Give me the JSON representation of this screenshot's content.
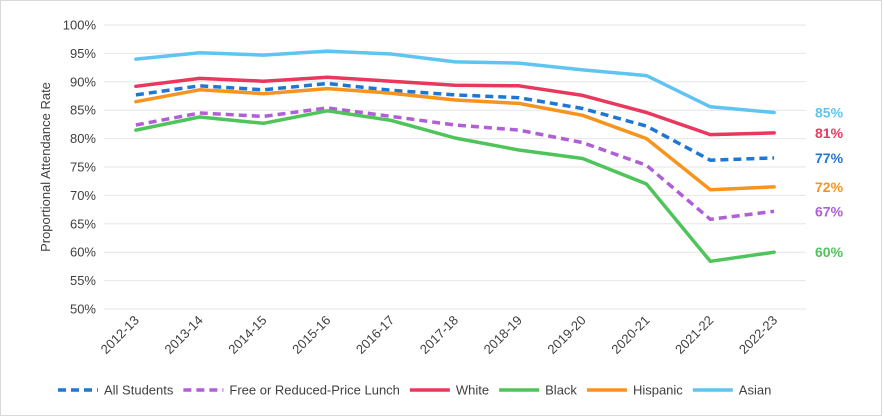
{
  "chart_data": {
    "type": "line",
    "title": "",
    "xlabel": "",
    "ylabel": "Proportional Attendance Rate",
    "ylim": [
      50,
      100
    ],
    "ytick_step": 5,
    "ytick_labels": [
      "50%",
      "55%",
      "60%",
      "65%",
      "70%",
      "75%",
      "80%",
      "85%",
      "90%",
      "95%",
      "100%"
    ],
    "categories": [
      "2012-13",
      "2013-14",
      "2014-15",
      "2015-16",
      "2016-17",
      "2017-18",
      "2018-19",
      "2019-20",
      "2020-21",
      "2021-22",
      "2022-23"
    ],
    "legend_position": "bottom",
    "series": [
      {
        "name": "All Students",
        "color": "#1f77d4",
        "dash": "dashed",
        "values": [
          87.7,
          89.3,
          88.6,
          89.7,
          88.5,
          87.7,
          87.2,
          85.3,
          82.2,
          76.2,
          76.6
        ],
        "end_label": "77%"
      },
      {
        "name": "Free or Reduced-Price Lunch",
        "color": "#b15fd6",
        "dash": "dashed",
        "values": [
          82.4,
          84.5,
          83.9,
          85.4,
          83.9,
          82.4,
          81.5,
          79.3,
          75.3,
          65.8,
          67.2
        ],
        "end_label": "67%"
      },
      {
        "name": "White",
        "color": "#e8385e",
        "dash": "solid",
        "values": [
          89.2,
          90.6,
          90.1,
          90.8,
          90.1,
          89.4,
          89.3,
          87.6,
          84.6,
          80.7,
          81.0
        ],
        "end_label": "81%"
      },
      {
        "name": "Black",
        "color": "#4ec45a",
        "dash": "solid",
        "values": [
          81.5,
          83.8,
          82.7,
          84.9,
          83.2,
          80.1,
          78.0,
          76.5,
          72.0,
          58.4,
          60.0
        ],
        "end_label": "60%"
      },
      {
        "name": "Hispanic",
        "color": "#f7941d",
        "dash": "solid",
        "values": [
          86.5,
          88.6,
          87.9,
          88.8,
          88.0,
          86.8,
          86.2,
          84.1,
          80.0,
          71.0,
          71.5
        ],
        "end_label": "72%"
      },
      {
        "name": "Asian",
        "color": "#5fc4f0",
        "dash": "solid",
        "values": [
          94.0,
          95.1,
          94.7,
          95.4,
          94.9,
          93.5,
          93.3,
          92.1,
          91.1,
          85.6,
          84.6
        ],
        "end_label": "85%"
      }
    ]
  }
}
